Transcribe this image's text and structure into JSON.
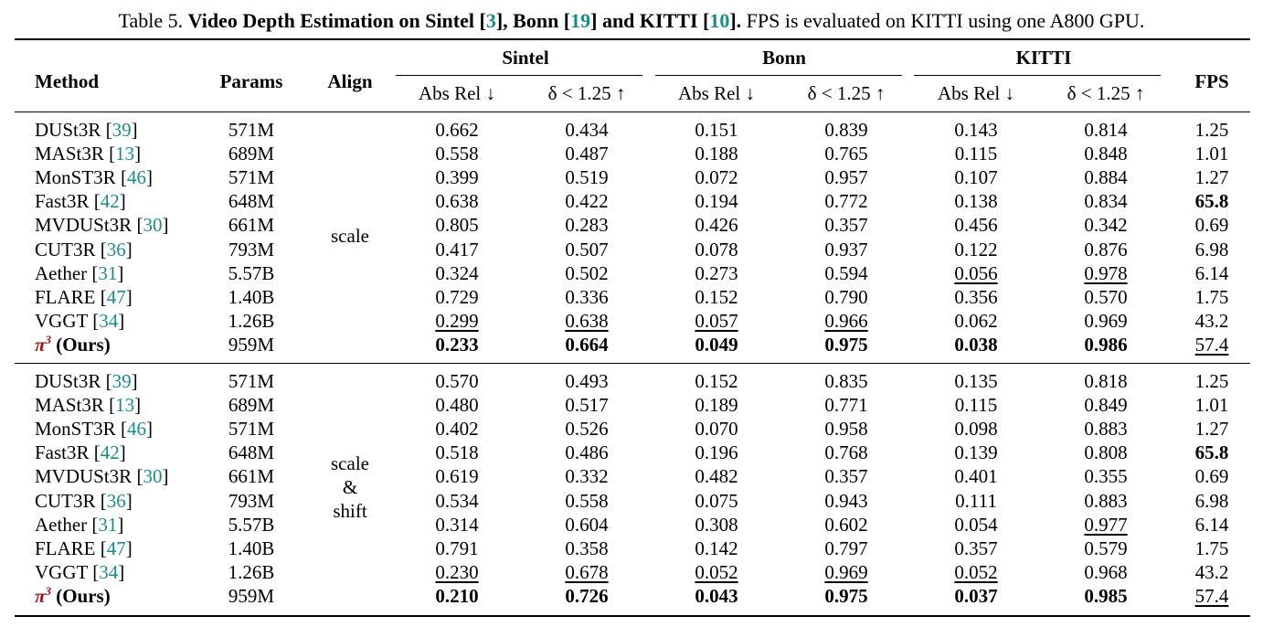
{
  "caption": {
    "prefix": "Table 5. ",
    "title_a": "Video Depth Estimation on Sintel [",
    "cite_sintel": "3",
    "title_b": "], Bonn [",
    "cite_bonn": "19",
    "title_c": "] and KITTI [",
    "cite_kitti": "10",
    "title_d": "].",
    "rest": " FPS is evaluated on KITTI using one A800 GPU."
  },
  "headers": {
    "method": "Method",
    "params": "Params",
    "align": "Align",
    "sintel": "Sintel",
    "bonn": "Bonn",
    "kitti": "KITTI",
    "fps": "FPS",
    "abs_rel": "Abs Rel ↓",
    "delta": "δ < 1.25 ↑"
  },
  "groups": [
    {
      "align": [
        "scale"
      ],
      "rows": [
        {
          "method": "DUSt3R",
          "cite": "39",
          "params": "571M",
          "values": [
            "0.662",
            "0.434",
            "0.151",
            "0.839",
            "0.143",
            "0.814",
            "1.25"
          ],
          "bold": [],
          "ul": []
        },
        {
          "method": "MASt3R",
          "cite": "13",
          "params": "689M",
          "values": [
            "0.558",
            "0.487",
            "0.188",
            "0.765",
            "0.115",
            "0.848",
            "1.01"
          ],
          "bold": [],
          "ul": []
        },
        {
          "method": "MonST3R",
          "cite": "46",
          "params": "571M",
          "values": [
            "0.399",
            "0.519",
            "0.072",
            "0.957",
            "0.107",
            "0.884",
            "1.27"
          ],
          "bold": [],
          "ul": []
        },
        {
          "method": "Fast3R",
          "cite": "42",
          "params": "648M",
          "values": [
            "0.638",
            "0.422",
            "0.194",
            "0.772",
            "0.138",
            "0.834",
            "65.8"
          ],
          "bold": [
            6
          ],
          "ul": []
        },
        {
          "method": "MVDUSt3R",
          "cite": "30",
          "params": "661M",
          "values": [
            "0.805",
            "0.283",
            "0.426",
            "0.357",
            "0.456",
            "0.342",
            "0.69"
          ],
          "bold": [],
          "ul": []
        },
        {
          "method": "CUT3R",
          "cite": "36",
          "params": "793M",
          "values": [
            "0.417",
            "0.507",
            "0.078",
            "0.937",
            "0.122",
            "0.876",
            "6.98"
          ],
          "bold": [],
          "ul": []
        },
        {
          "method": "Aether",
          "cite": "31",
          "params": "5.57B",
          "values": [
            "0.324",
            "0.502",
            "0.273",
            "0.594",
            "0.056",
            "0.978",
            "6.14"
          ],
          "bold": [],
          "ul": [
            4,
            5
          ]
        },
        {
          "method": "FLARE",
          "cite": "47",
          "params": "1.40B",
          "values": [
            "0.729",
            "0.336",
            "0.152",
            "0.790",
            "0.356",
            "0.570",
            "1.75"
          ],
          "bold": [],
          "ul": []
        },
        {
          "method": "VGGT",
          "cite": "34",
          "params": "1.26B",
          "values": [
            "0.299",
            "0.638",
            "0.057",
            "0.966",
            "0.062",
            "0.969",
            "43.2"
          ],
          "bold": [],
          "ul": [
            0,
            1,
            2,
            3
          ]
        },
        {
          "method": "π",
          "sup": "3",
          "ours": " (Ours)",
          "params": "959M",
          "values": [
            "0.233",
            "0.664",
            "0.049",
            "0.975",
            "0.038",
            "0.986",
            "57.4"
          ],
          "bold": [
            0,
            1,
            2,
            3,
            4,
            5
          ],
          "ul": [
            6
          ]
        }
      ]
    },
    {
      "align": [
        "scale",
        "&",
        "shift"
      ],
      "rows": [
        {
          "method": "DUSt3R",
          "cite": "39",
          "params": "571M",
          "values": [
            "0.570",
            "0.493",
            "0.152",
            "0.835",
            "0.135",
            "0.818",
            "1.25"
          ],
          "bold": [],
          "ul": []
        },
        {
          "method": "MASt3R",
          "cite": "13",
          "params": "689M",
          "values": [
            "0.480",
            "0.517",
            "0.189",
            "0.771",
            "0.115",
            "0.849",
            "1.01"
          ],
          "bold": [],
          "ul": []
        },
        {
          "method": "MonST3R",
          "cite": "46",
          "params": "571M",
          "values": [
            "0.402",
            "0.526",
            "0.070",
            "0.958",
            "0.098",
            "0.883",
            "1.27"
          ],
          "bold": [],
          "ul": []
        },
        {
          "method": "Fast3R",
          "cite": "42",
          "params": "648M",
          "values": [
            "0.518",
            "0.486",
            "0.196",
            "0.768",
            "0.139",
            "0.808",
            "65.8"
          ],
          "bold": [
            6
          ],
          "ul": []
        },
        {
          "method": "MVDUSt3R",
          "cite": "30",
          "params": "661M",
          "values": [
            "0.619",
            "0.332",
            "0.482",
            "0.357",
            "0.401",
            "0.355",
            "0.69"
          ],
          "bold": [],
          "ul": []
        },
        {
          "method": "CUT3R",
          "cite": "36",
          "params": "793M",
          "values": [
            "0.534",
            "0.558",
            "0.075",
            "0.943",
            "0.111",
            "0.883",
            "6.98"
          ],
          "bold": [],
          "ul": []
        },
        {
          "method": "Aether",
          "cite": "31",
          "params": "5.57B",
          "values": [
            "0.314",
            "0.604",
            "0.308",
            "0.602",
            "0.054",
            "0.977",
            "6.14"
          ],
          "bold": [],
          "ul": [
            5
          ]
        },
        {
          "method": "FLARE",
          "cite": "47",
          "params": "1.40B",
          "values": [
            "0.791",
            "0.358",
            "0.142",
            "0.797",
            "0.357",
            "0.579",
            "1.75"
          ],
          "bold": [],
          "ul": []
        },
        {
          "method": "VGGT",
          "cite": "34",
          "params": "1.26B",
          "values": [
            "0.230",
            "0.678",
            "0.052",
            "0.969",
            "0.052",
            "0.968",
            "43.2"
          ],
          "bold": [],
          "ul": [
            0,
            1,
            2,
            3,
            4
          ]
        },
        {
          "method": "π",
          "sup": "3",
          "ours": " (Ours)",
          "params": "959M",
          "values": [
            "0.210",
            "0.726",
            "0.043",
            "0.975",
            "0.037",
            "0.985",
            "57.4"
          ],
          "bold": [
            0,
            1,
            2,
            3,
            4,
            5
          ],
          "ul": [
            6
          ]
        }
      ]
    }
  ]
}
